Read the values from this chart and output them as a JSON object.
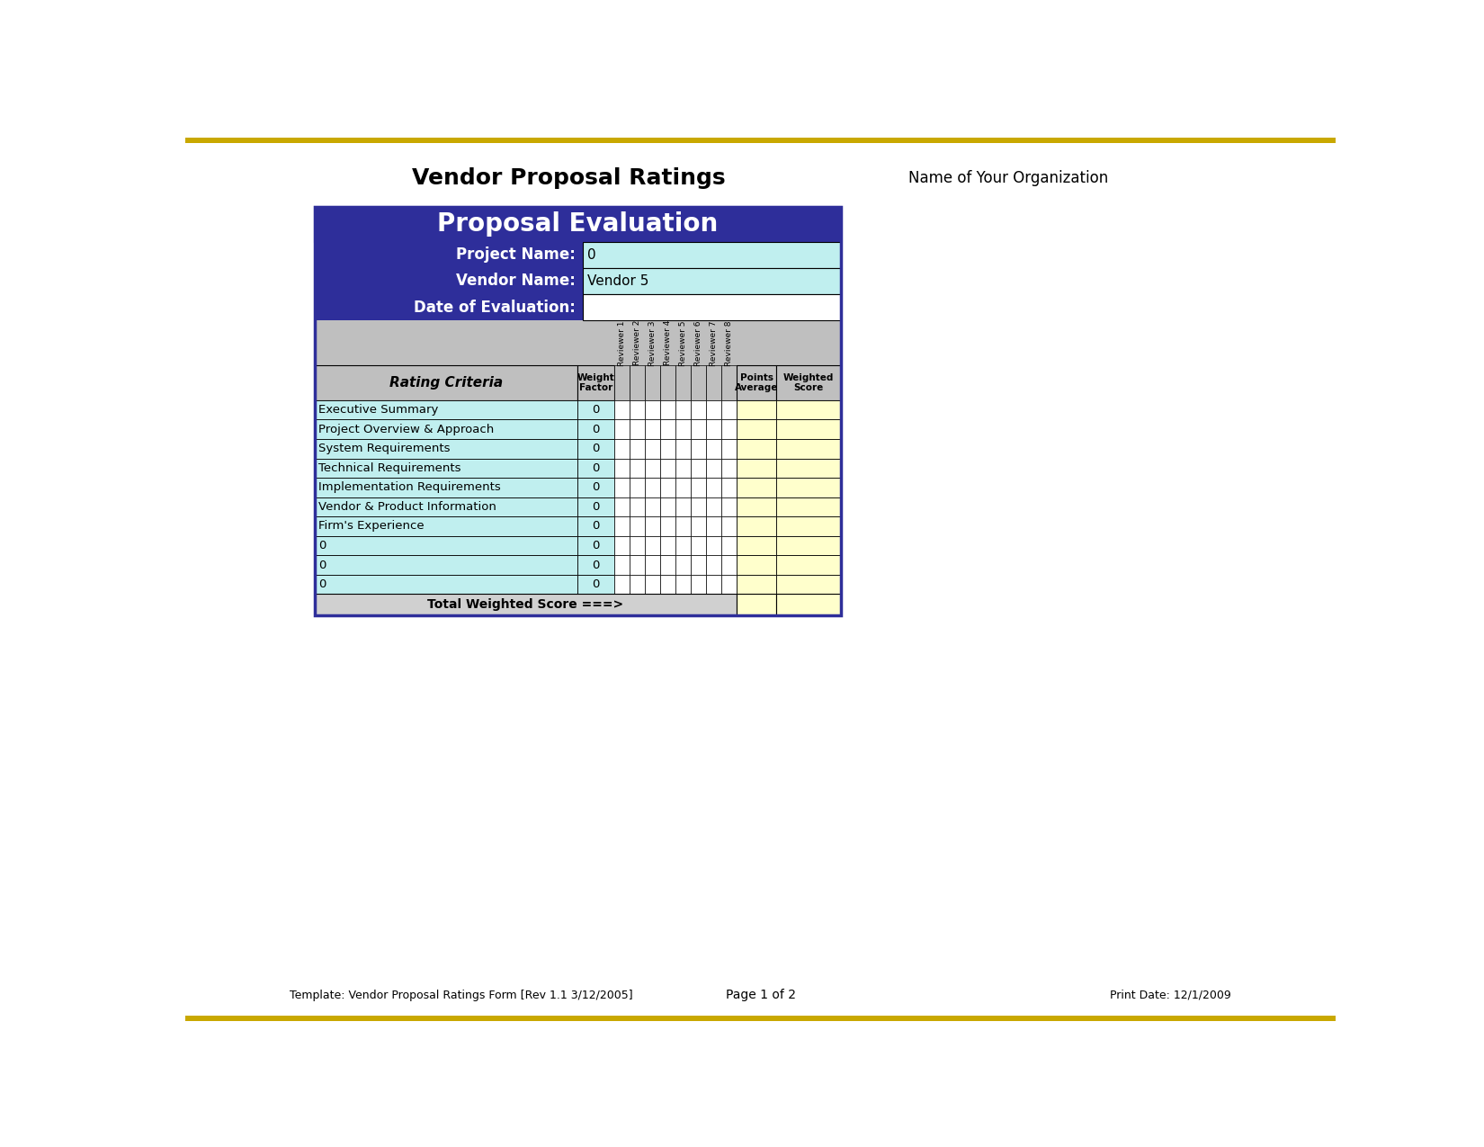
{
  "title": "Vendor Proposal Ratings",
  "org_name": "Name of Your Organization",
  "form_title": "Proposal Evaluation",
  "project_name_label": "Project Name:",
  "project_name_value": "0",
  "vendor_name_label": "Vendor Name:",
  "vendor_name_value": "Vendor 5",
  "date_label": "Date of Evaluation:",
  "date_value": "",
  "rating_criteria_label": "Rating Criteria",
  "weight_factor_label": "Weight\nFactor",
  "points_average_label": "Points\nAverage",
  "weighted_score_label": "Weighted\nScore",
  "reviewers": [
    "Reviewer 1",
    "Reviewer 2",
    "Reviewer 3",
    "Reviewer 4",
    "Reviewer 5",
    "Reviewer 6",
    "Reviewer 7",
    "Reviewer 8"
  ],
  "criteria": [
    "Executive Summary",
    "Project Overview & Approach",
    "System Requirements",
    "Technical Requirements",
    "Implementation Requirements",
    "Vendor & Product Information",
    "Firm's Experience",
    "0",
    "0",
    "0"
  ],
  "weights": [
    "0",
    "0",
    "0",
    "0",
    "0",
    "0",
    "0",
    "0",
    "0",
    "0"
  ],
  "total_label": "Total Weighted Score ===>",
  "footer_left": "Template: Vendor Proposal Ratings Form [Rev 1.1 3/12/2005]",
  "footer_center": "Page 1 of 2",
  "footer_right": "Print Date: 12/1/2009",
  "colors": {
    "dark_blue": "#2E2E9A",
    "light_cyan": "#C0EFEF",
    "gray": "#BFBFBF",
    "light_gray": "#D0D0D0",
    "yellow_light": "#FFFFCC",
    "white": "#FFFFFF",
    "black": "#000000",
    "gold_border": "#C9A800",
    "dark_border": "#333333"
  },
  "figsize": [
    16.5,
    12.75
  ],
  "dpi": 100
}
